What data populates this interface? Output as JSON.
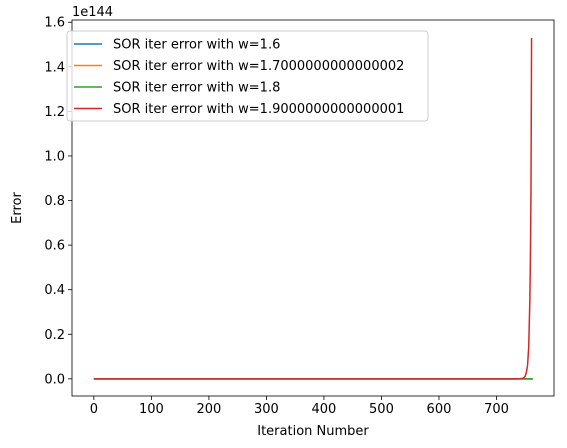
{
  "chart_data": {
    "type": "line",
    "xlabel": "Iteration Number",
    "ylabel": "Error",
    "offset_label": "1e144",
    "xlim": [
      -38,
      800
    ],
    "ylim": [
      -0.077,
      1.61
    ],
    "xticks": [
      0,
      100,
      200,
      300,
      400,
      500,
      600,
      700
    ],
    "xtick_labels": [
      "0",
      "100",
      "200",
      "300",
      "400",
      "500",
      "600",
      "700"
    ],
    "yticks": [
      0.0,
      0.2,
      0.4,
      0.6,
      0.8,
      1.0,
      1.2,
      1.4,
      1.6
    ],
    "ytick_labels": [
      "0.0",
      "0.2",
      "0.4",
      "0.6",
      "0.8",
      "1.0",
      "1.2",
      "1.4",
      "1.6"
    ],
    "grid": false,
    "legend_position": "upper-left",
    "series": [
      {
        "name": "SOR iter error with w=1.6",
        "color": "#1f77b4",
        "x": [
          0,
          100,
          200,
          300,
          400,
          500,
          600,
          700,
          763
        ],
        "y": [
          0,
          0,
          0,
          0,
          0,
          0,
          0,
          0,
          0
        ]
      },
      {
        "name": "SOR iter error with w=1.7000000000000002",
        "color": "#ff7f0e",
        "x": [
          0,
          100,
          200,
          300,
          400,
          500,
          600,
          700,
          763
        ],
        "y": [
          0,
          0,
          0,
          0,
          0,
          0,
          0,
          0,
          0
        ]
      },
      {
        "name": "SOR iter error with w=1.8",
        "color": "#2ca02c",
        "x": [
          0,
          100,
          200,
          300,
          400,
          500,
          600,
          700,
          763
        ],
        "y": [
          0,
          0,
          0,
          0,
          0,
          0,
          0,
          0,
          0
        ]
      },
      {
        "name": "SOR iter error with w=1.9000000000000001",
        "color": "#d62728",
        "x": [
          0,
          100,
          200,
          300,
          400,
          500,
          600,
          700,
          720,
          730,
          740,
          745,
          748,
          750,
          752,
          754,
          756,
          758,
          759,
          760,
          761
        ],
        "y": [
          0,
          0,
          0,
          0,
          0,
          0,
          0,
          0,
          0,
          0,
          0.0005,
          0.002,
          0.006,
          0.012,
          0.03,
          0.06,
          0.14,
          0.35,
          0.55,
          0.85,
          1.53
        ]
      }
    ]
  }
}
